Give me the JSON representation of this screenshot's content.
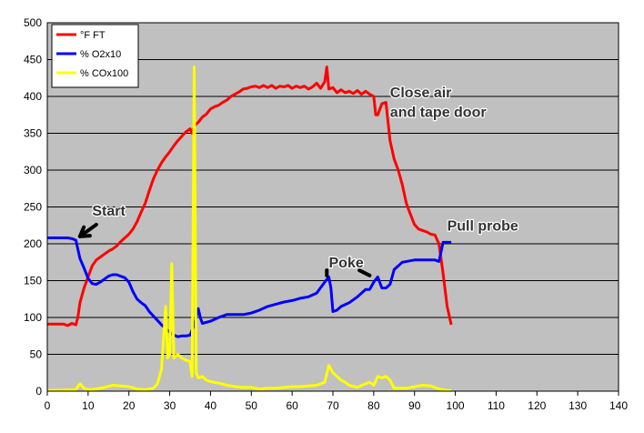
{
  "chart_data": {
    "type": "line",
    "xlim": [
      0,
      140
    ],
    "ylim": [
      0,
      500
    ],
    "x_ticks": [
      0,
      10,
      20,
      30,
      40,
      50,
      60,
      70,
      80,
      90,
      100,
      110,
      120,
      130,
      140
    ],
    "y_ticks": [
      0,
      50,
      100,
      150,
      200,
      250,
      300,
      350,
      400,
      450,
      500
    ],
    "grid": true,
    "plot_background": "#c0c0c0",
    "legend_position": "top-left",
    "series": [
      {
        "name": "°F FT",
        "color": "#ff0000",
        "points": [
          [
            0,
            91
          ],
          [
            4,
            91
          ],
          [
            5,
            89
          ],
          [
            6,
            92
          ],
          [
            7,
            90
          ],
          [
            7.5,
            100
          ],
          [
            8,
            120
          ],
          [
            9,
            140
          ],
          [
            10,
            155
          ],
          [
            11,
            170
          ],
          [
            12,
            178
          ],
          [
            13,
            182
          ],
          [
            14,
            186
          ],
          [
            15,
            190
          ],
          [
            16,
            193
          ],
          [
            17,
            197
          ],
          [
            18,
            203
          ],
          [
            19,
            208
          ],
          [
            20,
            213
          ],
          [
            21,
            220
          ],
          [
            22,
            230
          ],
          [
            23,
            243
          ],
          [
            24,
            255
          ],
          [
            25,
            272
          ],
          [
            26,
            288
          ],
          [
            27,
            300
          ],
          [
            28,
            310
          ],
          [
            29,
            318
          ],
          [
            30,
            325
          ],
          [
            31,
            333
          ],
          [
            32,
            340
          ],
          [
            33,
            346
          ],
          [
            34,
            352
          ],
          [
            35,
            356
          ],
          [
            35.5,
            350
          ],
          [
            36,
            360
          ],
          [
            37,
            365
          ],
          [
            38,
            372
          ],
          [
            39,
            376
          ],
          [
            40,
            383
          ],
          [
            41,
            386
          ],
          [
            42,
            388
          ],
          [
            43,
            392
          ],
          [
            44,
            395
          ],
          [
            45,
            400
          ],
          [
            46,
            403
          ],
          [
            47,
            406
          ],
          [
            48,
            410
          ],
          [
            49,
            411
          ],
          [
            50,
            413
          ],
          [
            51,
            414
          ],
          [
            52,
            412
          ],
          [
            53,
            415
          ],
          [
            54,
            412
          ],
          [
            55,
            415
          ],
          [
            56,
            411
          ],
          [
            57,
            414
          ],
          [
            58,
            413
          ],
          [
            59,
            415
          ],
          [
            60,
            411
          ],
          [
            61,
            414
          ],
          [
            62,
            412
          ],
          [
            63,
            414
          ],
          [
            64,
            410
          ],
          [
            65,
            413
          ],
          [
            66,
            418
          ],
          [
            67,
            411
          ],
          [
            68,
            420
          ],
          [
            68.5,
            440
          ],
          [
            69,
            410
          ],
          [
            70,
            412
          ],
          [
            71,
            405
          ],
          [
            72,
            409
          ],
          [
            73,
            405
          ],
          [
            74,
            407
          ],
          [
            75,
            404
          ],
          [
            76,
            408
          ],
          [
            77,
            403
          ],
          [
            78,
            407
          ],
          [
            79,
            403
          ],
          [
            80,
            400
          ],
          [
            80.5,
            375
          ],
          [
            81,
            375
          ],
          [
            82,
            390
          ],
          [
            83,
            392
          ],
          [
            84,
            340
          ],
          [
            85,
            315
          ],
          [
            86,
            300
          ],
          [
            87,
            280
          ],
          [
            88,
            255
          ],
          [
            89,
            240
          ],
          [
            90,
            226
          ],
          [
            91,
            220
          ],
          [
            92,
            218
          ],
          [
            93,
            216
          ],
          [
            94,
            213
          ],
          [
            95,
            212
          ],
          [
            96,
            200
          ],
          [
            97,
            160
          ],
          [
            98,
            115
          ],
          [
            99,
            90
          ]
        ]
      },
      {
        "name": "% O2x10",
        "color": "#0000ff",
        "points": [
          [
            0,
            208
          ],
          [
            5,
            208
          ],
          [
            6,
            207
          ],
          [
            7,
            205
          ],
          [
            8,
            180
          ],
          [
            9,
            167
          ],
          [
            10,
            153
          ],
          [
            11,
            146
          ],
          [
            12,
            145
          ],
          [
            13,
            148
          ],
          [
            14,
            152
          ],
          [
            15,
            156
          ],
          [
            16,
            158
          ],
          [
            17,
            158
          ],
          [
            18,
            156
          ],
          [
            19,
            154
          ],
          [
            20,
            148
          ],
          [
            21,
            135
          ],
          [
            22,
            125
          ],
          [
            23,
            120
          ],
          [
            24,
            116
          ],
          [
            25,
            108
          ],
          [
            26,
            102
          ],
          [
            27,
            96
          ],
          [
            28,
            90
          ],
          [
            29,
            85
          ],
          [
            30,
            80
          ],
          [
            31,
            76
          ],
          [
            32,
            74
          ],
          [
            33,
            75
          ],
          [
            34,
            75
          ],
          [
            35,
            76
          ],
          [
            36,
            90
          ],
          [
            37,
            112
          ],
          [
            37.5,
            100
          ],
          [
            38,
            92
          ],
          [
            40,
            95
          ],
          [
            42,
            100
          ],
          [
            44,
            104
          ],
          [
            46,
            104
          ],
          [
            48,
            104
          ],
          [
            50,
            106
          ],
          [
            52,
            110
          ],
          [
            54,
            115
          ],
          [
            56,
            118
          ],
          [
            58,
            121
          ],
          [
            60,
            123
          ],
          [
            62,
            126
          ],
          [
            64,
            128
          ],
          [
            66,
            133
          ],
          [
            68,
            148
          ],
          [
            69,
            155
          ],
          [
            69.5,
            140
          ],
          [
            70,
            108
          ],
          [
            71,
            110
          ],
          [
            72,
            115
          ],
          [
            74,
            120
          ],
          [
            76,
            128
          ],
          [
            78,
            138
          ],
          [
            79,
            138
          ],
          [
            80,
            148
          ],
          [
            81,
            155
          ],
          [
            82,
            140
          ],
          [
            83,
            140
          ],
          [
            84,
            145
          ],
          [
            85,
            165
          ],
          [
            86,
            170
          ],
          [
            87,
            175
          ],
          [
            90,
            178
          ],
          [
            95,
            178
          ],
          [
            96,
            176
          ],
          [
            97,
            202
          ],
          [
            99,
            202
          ]
        ]
      },
      {
        "name": "% COx100",
        "color": "#ffff00",
        "points": [
          [
            0,
            1
          ],
          [
            7,
            2
          ],
          [
            8,
            10
          ],
          [
            9,
            4
          ],
          [
            10,
            2
          ],
          [
            12,
            3
          ],
          [
            14,
            5
          ],
          [
            16,
            8
          ],
          [
            18,
            7
          ],
          [
            20,
            6
          ],
          [
            22,
            3
          ],
          [
            24,
            2
          ],
          [
            26,
            4
          ],
          [
            27,
            10
          ],
          [
            28,
            30
          ],
          [
            29,
            115
          ],
          [
            29.5,
            45
          ],
          [
            30,
            50
          ],
          [
            30.5,
            173
          ],
          [
            31,
            45
          ],
          [
            32,
            50
          ],
          [
            33,
            45
          ],
          [
            34,
            42
          ],
          [
            35,
            40
          ],
          [
            35.5,
            20
          ],
          [
            36,
            440
          ],
          [
            36.5,
            25
          ],
          [
            37,
            18
          ],
          [
            38,
            20
          ],
          [
            39,
            15
          ],
          [
            40,
            13
          ],
          [
            42,
            11
          ],
          [
            44,
            8
          ],
          [
            46,
            6
          ],
          [
            48,
            5
          ],
          [
            50,
            5
          ],
          [
            52,
            3
          ],
          [
            54,
            4
          ],
          [
            56,
            4
          ],
          [
            58,
            5
          ],
          [
            60,
            6
          ],
          [
            62,
            6
          ],
          [
            64,
            7
          ],
          [
            66,
            8
          ],
          [
            68,
            12
          ],
          [
            69,
            35
          ],
          [
            70,
            25
          ],
          [
            71,
            20
          ],
          [
            72,
            15
          ],
          [
            73,
            12
          ],
          [
            74,
            8
          ],
          [
            76,
            5
          ],
          [
            78,
            10
          ],
          [
            79,
            12
          ],
          [
            80,
            8
          ],
          [
            81,
            20
          ],
          [
            82,
            18
          ],
          [
            83,
            20
          ],
          [
            84,
            15
          ],
          [
            85,
            4
          ],
          [
            88,
            4
          ],
          [
            90,
            6
          ],
          [
            92,
            8
          ],
          [
            94,
            7
          ],
          [
            96,
            3
          ],
          [
            98,
            1
          ],
          [
            99,
            1
          ]
        ]
      }
    ],
    "annotations": [
      {
        "text": "Start",
        "x": 11,
        "y": 238
      },
      {
        "text": "Close air",
        "x": 84,
        "y": 399
      },
      {
        "text": "and tape door",
        "x": 84,
        "y": 372
      },
      {
        "text": "Pull probe",
        "x": 98,
        "y": 218
      },
      {
        "text": "Poke",
        "x": 69,
        "y": 168
      }
    ],
    "arrows": [
      {
        "points": [
          [
            12,
            226
          ],
          [
            8,
            210
          ]
        ],
        "head": true
      },
      {
        "points": [
          [
            68.5,
            164
          ],
          [
            68.5,
            157
          ]
        ],
        "head": false
      },
      {
        "points": [
          [
            76.5,
            164
          ],
          [
            79,
            157
          ]
        ],
        "head": false
      }
    ]
  }
}
